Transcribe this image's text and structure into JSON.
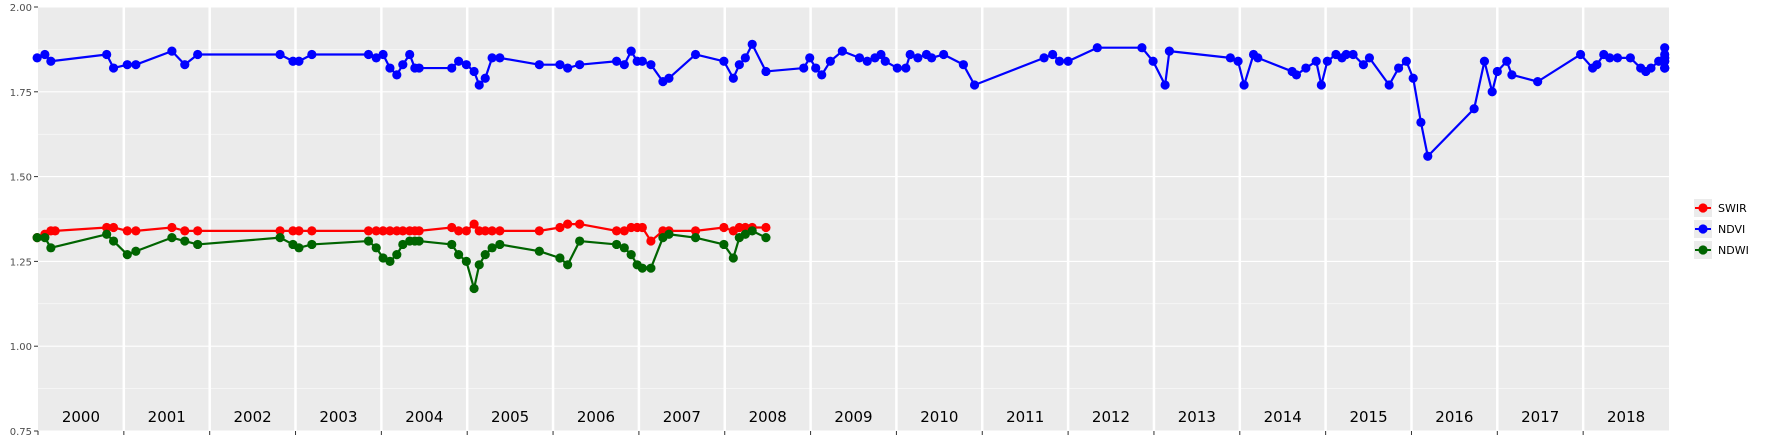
{
  "chart_data": {
    "type": "line",
    "title": "",
    "xlabel": "",
    "ylabel": "",
    "ylim": [
      0.75,
      2.0
    ],
    "xlim": [
      2000.0,
      2019.0
    ],
    "yticks": [
      "0.75",
      "1.00",
      "1.25",
      "1.50",
      "1.75",
      "2.00"
    ],
    "year_labels": [
      "2000",
      "2001",
      "2002",
      "2003",
      "2004",
      "2005",
      "2006",
      "2007",
      "2008",
      "2009",
      "2010",
      "2011",
      "2012",
      "2013",
      "2014",
      "2015",
      "2016",
      "2017",
      "2018"
    ],
    "legend": [
      "SWIR",
      "NDVI",
      "NDWI"
    ],
    "legend_position": "right",
    "grid": true,
    "series": [
      {
        "name": "NDVI",
        "color": "#0000ff",
        "x": [
          1999.99,
          2000.08,
          2000.15,
          2000.8,
          2000.88,
          2001.04,
          2001.14,
          2001.56,
          2001.71,
          2001.86,
          2002.82,
          2002.97,
          2003.04,
          2003.19,
          2003.85,
          2003.94,
          2004.02,
          2004.1,
          2004.18,
          2004.25,
          2004.33,
          2004.39,
          2004.44,
          2004.82,
          2004.9,
          2004.99,
          2005.08,
          2005.14,
          2005.21,
          2005.29,
          2005.38,
          2005.84,
          2006.08,
          2006.17,
          2006.31,
          2006.74,
          2006.83,
          2006.91,
          2006.98,
          2007.04,
          2007.14,
          2007.28,
          2007.35,
          2007.66,
          2007.99,
          2008.1,
          2008.17,
          2008.24,
          2008.32,
          2008.48,
          2008.92,
          2008.99,
          2009.06,
          2009.13,
          2009.23,
          2009.37,
          2009.57,
          2009.66,
          2009.75,
          2009.82,
          2009.87,
          2010.01,
          2010.11,
          2010.16,
          2010.25,
          2010.35,
          2010.41,
          2010.55,
          2010.78,
          2010.91,
          2011.72,
          2011.82,
          2011.9,
          2012.0,
          2012.34,
          2012.86,
          2012.99,
          2013.13,
          2013.18,
          2013.89,
          2013.98,
          2014.05,
          2014.16,
          2014.21,
          2014.61,
          2014.66,
          2014.77,
          2014.89,
          2014.95,
          2015.02,
          2015.12,
          2015.19,
          2015.24,
          2015.32,
          2015.44,
          2015.51,
          2015.74,
          2015.85,
          2015.94,
          2016.02,
          2016.11,
          2016.19,
          2016.73,
          2016.85,
          2016.94,
          2017.0,
          2017.11,
          2017.17,
          2017.47,
          2017.97,
          2018.11,
          2018.16,
          2018.24,
          2018.31,
          2018.4,
          2018.55,
          2018.67,
          2018.73,
          2018.79,
          2018.88,
          2018.99,
          2019.04,
          2019.08,
          2019.14,
          2019.19,
          2019.25,
          2019.33,
          2019.38,
          2019.43
        ],
        "values": [
          1.85,
          1.86,
          1.84,
          1.86,
          1.82,
          1.83,
          1.83,
          1.87,
          1.83,
          1.86,
          1.86,
          1.84,
          1.84,
          1.86,
          1.86,
          1.85,
          1.86,
          1.82,
          1.8,
          1.83,
          1.86,
          1.82,
          1.82,
          1.82,
          1.84,
          1.83,
          1.81,
          1.77,
          1.79,
          1.85,
          1.85,
          1.83,
          1.83,
          1.82,
          1.83,
          1.84,
          1.83,
          1.87,
          1.84,
          1.84,
          1.83,
          1.78,
          1.79,
          1.86,
          1.84,
          1.79,
          1.83,
          1.85,
          1.89,
          1.81,
          1.82,
          1.85,
          1.82,
          1.8,
          1.84,
          1.87,
          1.85,
          1.84,
          1.85,
          1.86,
          1.84,
          1.82,
          1.82,
          1.86,
          1.85,
          1.86,
          1.85,
          1.86,
          1.83,
          1.77,
          1.85,
          1.86,
          1.84,
          1.84,
          1.88,
          1.88,
          1.84,
          1.77,
          1.87,
          1.85,
          1.84,
          1.77,
          1.86,
          1.85,
          1.81,
          1.8,
          1.82,
          1.84,
          1.77,
          1.84,
          1.86,
          1.85,
          1.86,
          1.86,
          1.83,
          1.85,
          1.77,
          1.82,
          1.84,
          1.79,
          1.66,
          1.56,
          1.7,
          1.84,
          1.75,
          1.81,
          1.84,
          1.8,
          1.78,
          1.86,
          1.82,
          1.83,
          1.86,
          1.85,
          1.85,
          1.85,
          1.82,
          1.81,
          1.82,
          1.84,
          1.84,
          1.85,
          1.85,
          1.88,
          1.84,
          1.86,
          1.82,
          1.82,
          1.82
        ],
        "x_end": 2018.98
      },
      {
        "name": "SWIR",
        "color": "#ff0000",
        "x": [
          1999.99,
          2000.08,
          2000.15,
          2000.2,
          2000.8,
          2000.88,
          2001.04,
          2001.14,
          2001.56,
          2001.71,
          2001.86,
          2002.82,
          2002.97,
          2003.04,
          2003.19,
          2003.85,
          2003.94,
          2004.02,
          2004.1,
          2004.18,
          2004.25,
          2004.33,
          2004.39,
          2004.44,
          2004.82,
          2004.9,
          2004.99,
          2005.08,
          2005.14,
          2005.21,
          2005.29,
          2005.38,
          2005.84,
          2006.08,
          2006.17,
          2006.31,
          2006.74,
          2006.83,
          2006.91,
          2006.98,
          2007.04,
          2007.14,
          2007.28,
          2007.35,
          2007.66,
          2007.99,
          2008.1,
          2008.17,
          2008.24,
          2008.32,
          2008.48
        ],
        "values": [
          1.32,
          1.33,
          1.34,
          1.34,
          1.35,
          1.35,
          1.34,
          1.34,
          1.35,
          1.34,
          1.34,
          1.34,
          1.34,
          1.34,
          1.34,
          1.34,
          1.34,
          1.34,
          1.34,
          1.34,
          1.34,
          1.34,
          1.34,
          1.34,
          1.35,
          1.34,
          1.34,
          1.36,
          1.34,
          1.34,
          1.34,
          1.34,
          1.34,
          1.35,
          1.36,
          1.36,
          1.34,
          1.34,
          1.35,
          1.35,
          1.35,
          1.31,
          1.34,
          1.34,
          1.34,
          1.35,
          1.34,
          1.35,
          1.35,
          1.35,
          1.35
        ]
      },
      {
        "name": "NDWI",
        "color": "#006400",
        "x": [
          1999.99,
          2000.08,
          2000.15,
          2000.8,
          2000.88,
          2001.04,
          2001.14,
          2001.56,
          2001.71,
          2001.86,
          2002.82,
          2002.97,
          2003.04,
          2003.19,
          2003.85,
          2003.94,
          2004.02,
          2004.1,
          2004.18,
          2004.25,
          2004.33,
          2004.39,
          2004.44,
          2004.82,
          2004.9,
          2004.99,
          2005.08,
          2005.14,
          2005.21,
          2005.29,
          2005.38,
          2005.84,
          2006.08,
          2006.17,
          2006.31,
          2006.74,
          2006.83,
          2006.91,
          2006.98,
          2007.04,
          2007.14,
          2007.28,
          2007.35,
          2007.66,
          2007.99,
          2008.1,
          2008.17,
          2008.24,
          2008.32,
          2008.48
        ],
        "values": [
          1.32,
          1.32,
          1.29,
          1.33,
          1.31,
          1.27,
          1.28,
          1.32,
          1.31,
          1.3,
          1.32,
          1.3,
          1.29,
          1.3,
          1.31,
          1.29,
          1.26,
          1.25,
          1.27,
          1.3,
          1.31,
          1.31,
          1.31,
          1.3,
          1.27,
          1.25,
          1.17,
          1.24,
          1.27,
          1.29,
          1.3,
          1.28,
          1.26,
          1.24,
          1.31,
          1.3,
          1.29,
          1.27,
          1.24,
          1.23,
          1.23,
          1.32,
          1.33,
          1.32,
          1.3,
          1.26,
          1.32,
          1.33,
          1.34,
          1.32
        ]
      }
    ]
  }
}
